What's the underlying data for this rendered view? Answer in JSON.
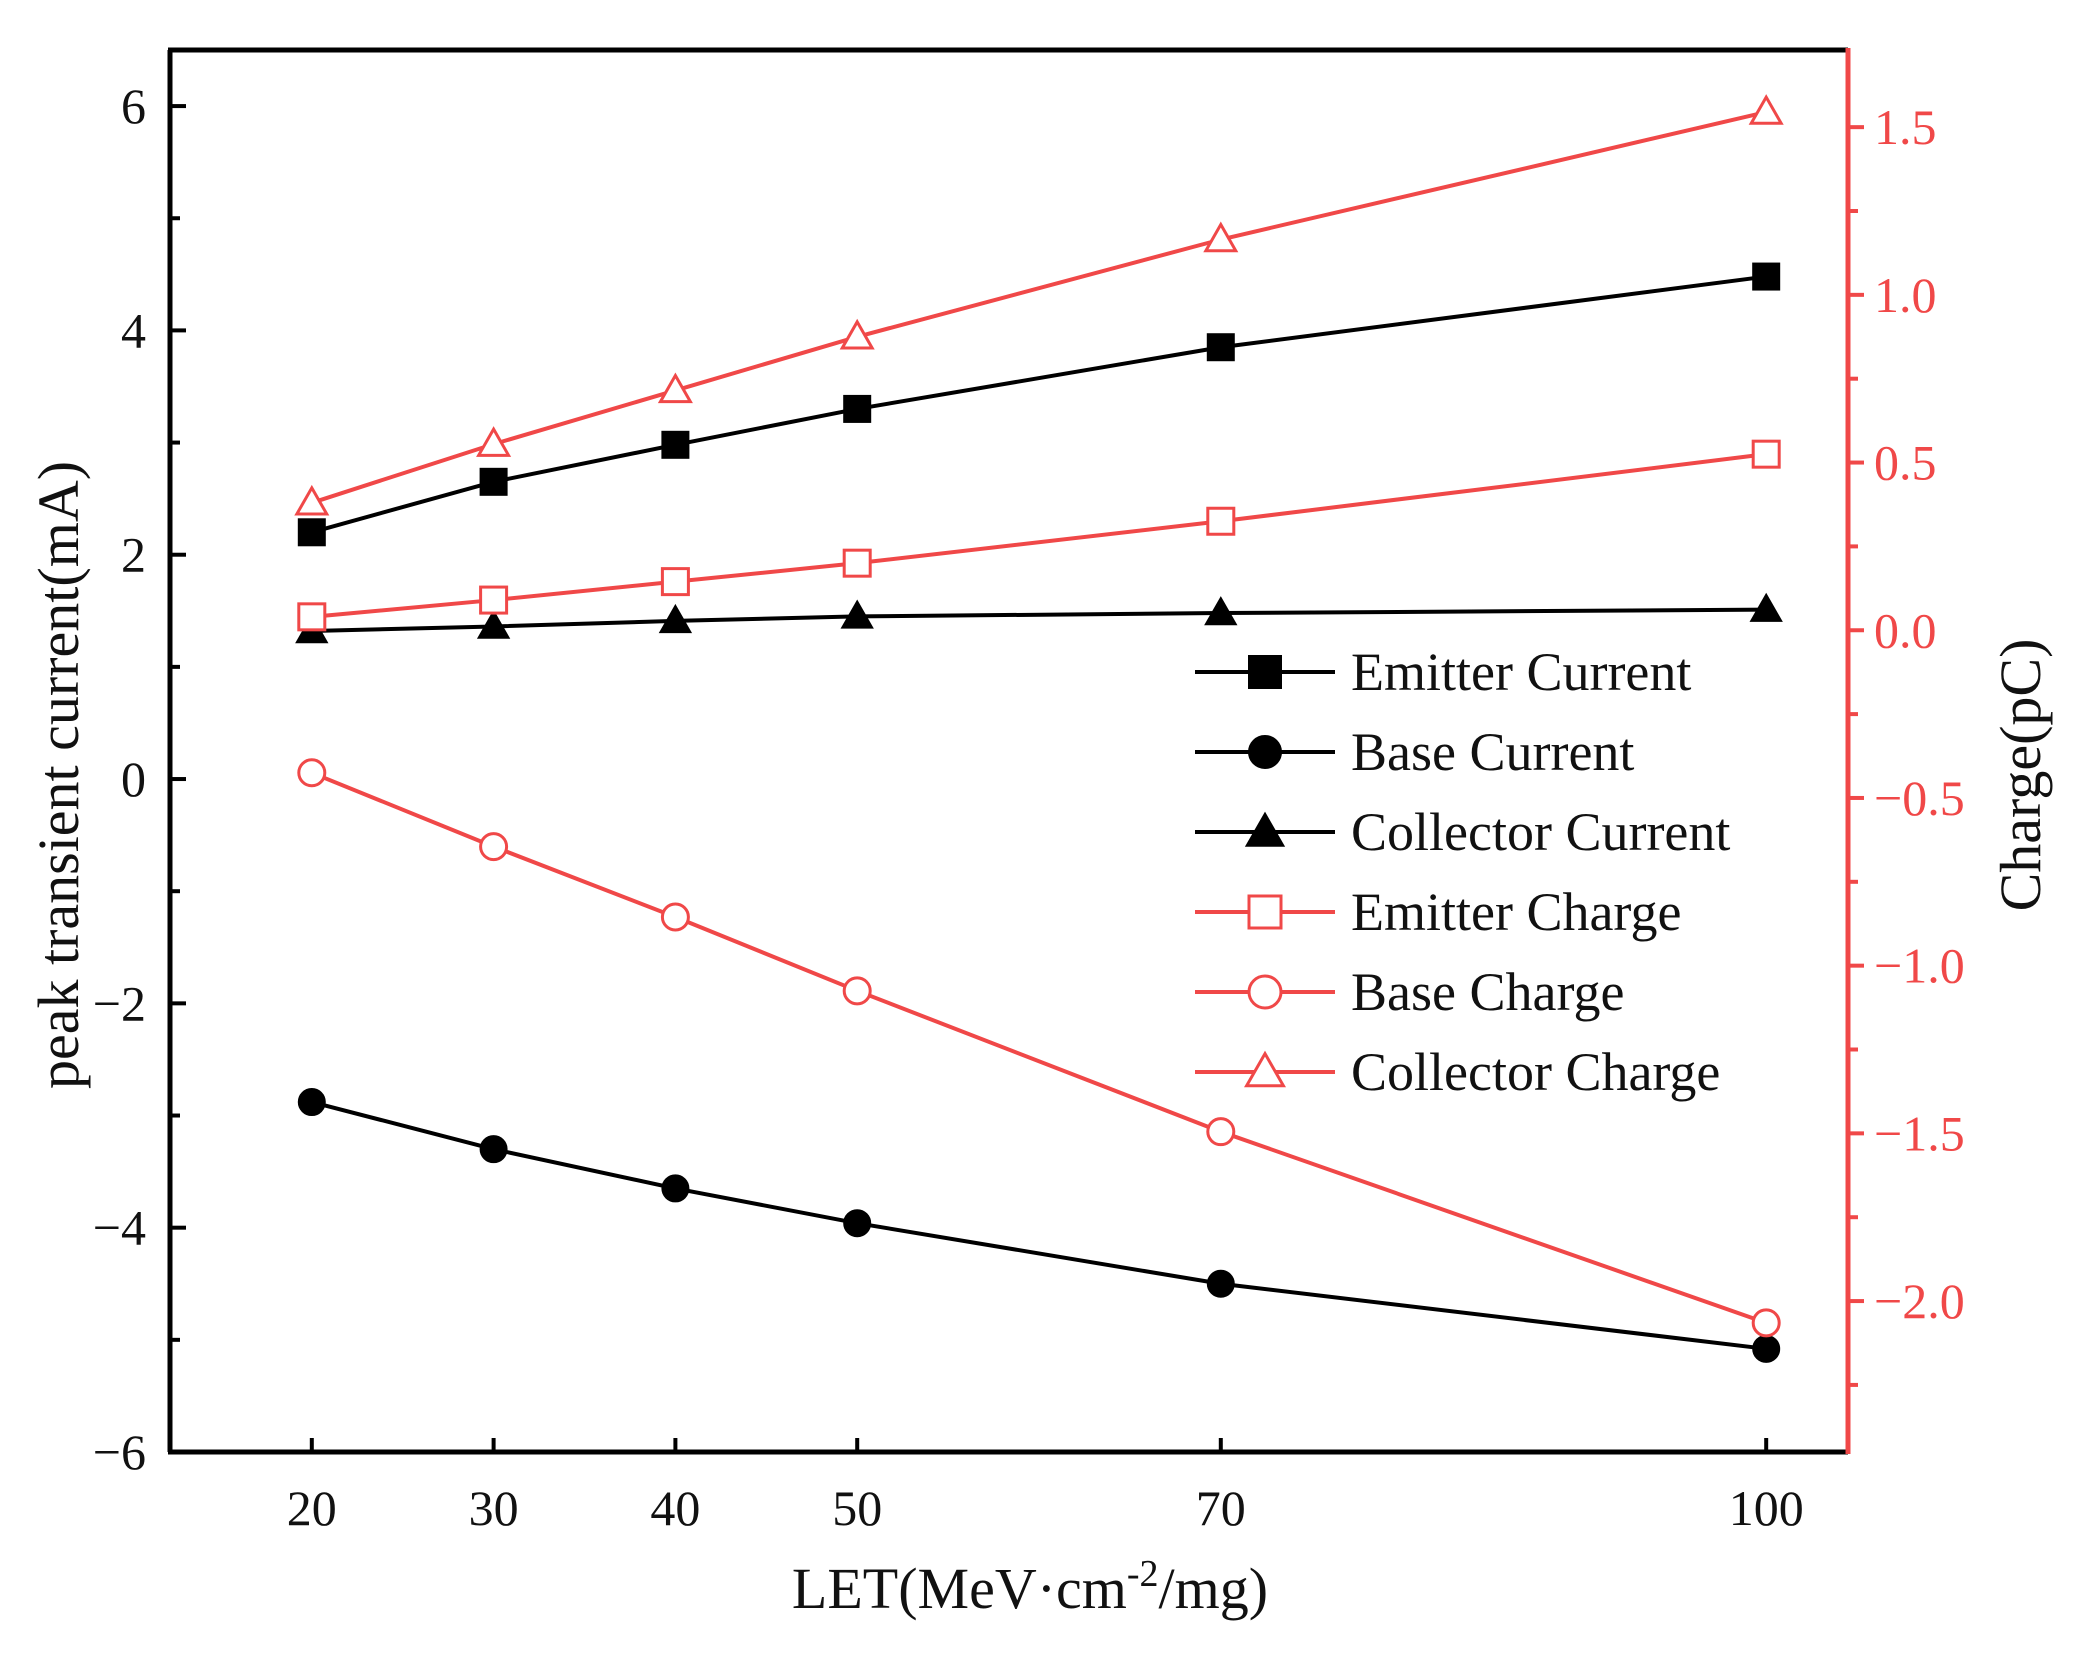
{
  "chart_data": {
    "type": "line",
    "title": "",
    "xlabel": "LET(MeV·cm",
    "xlabel_sup": "-2",
    "xlabel_tail": "/mg)",
    "ylabel": "peak transient current(mA)",
    "y2label": "Charge(pC)",
    "x": [
      20,
      30,
      40,
      50,
      70,
      100
    ],
    "x_tick_labels": [
      "20",
      "30",
      "40",
      "50",
      "70",
      "100"
    ],
    "xlim": [
      12.2,
      104.5
    ],
    "ylim": [
      -6,
      6.5
    ],
    "y_ticks": [
      -6,
      -4,
      -2,
      0,
      2,
      4,
      6
    ],
    "y_tick_labels": [
      "−6",
      "−4",
      "−2",
      "0",
      "2",
      "4",
      "6"
    ],
    "y2lim": [
      -2.45,
      1.73
    ],
    "y2_ticks": [
      -2.0,
      -1.5,
      -1.0,
      -0.5,
      0.0,
      0.5,
      1.0,
      1.5
    ],
    "y2_tick_labels": [
      "−2.0",
      "−1.5",
      "−1.0",
      "−0.5",
      "0.0",
      "0.5",
      "1.0",
      "1.5"
    ],
    "legend_position": "right-middle",
    "series": [
      {
        "name": "Emitter Current",
        "axis": "left",
        "color": "#000000",
        "marker": "square",
        "filled": true,
        "values": [
          2.2,
          2.65,
          2.98,
          3.3,
          3.85,
          4.48
        ]
      },
      {
        "name": "Base Current",
        "axis": "left",
        "color": "#000000",
        "marker": "circle",
        "filled": true,
        "values": [
          -2.88,
          -3.3,
          -3.65,
          -3.96,
          -4.5,
          -5.08
        ]
      },
      {
        "name": "Collector Current",
        "axis": "left",
        "color": "#000000",
        "marker": "triangle",
        "filled": true,
        "values": [
          1.32,
          1.36,
          1.41,
          1.45,
          1.48,
          1.51
        ]
      },
      {
        "name": "Emitter Charge",
        "axis": "right",
        "color": "#f04848",
        "marker": "square",
        "filled": false,
        "values": [
          0.04,
          0.09,
          0.145,
          0.2,
          0.325,
          0.525
        ]
      },
      {
        "name": "Base Charge",
        "axis": "right",
        "color": "#f04848",
        "marker": "circle",
        "filled": false,
        "values": [
          -0.425,
          -0.645,
          -0.855,
          -1.075,
          -1.495,
          -2.065
        ]
      },
      {
        "name": "Collector Charge",
        "axis": "right",
        "color": "#f04848",
        "marker": "triangle",
        "filled": false,
        "values": [
          0.38,
          0.555,
          0.715,
          0.875,
          1.165,
          1.545
        ]
      }
    ]
  }
}
